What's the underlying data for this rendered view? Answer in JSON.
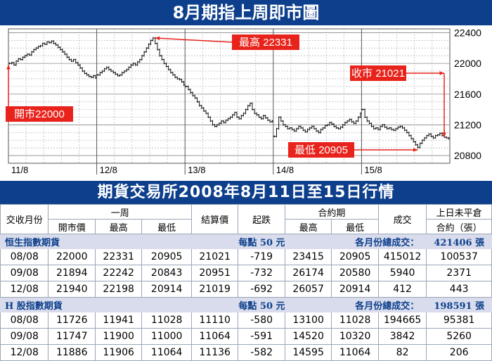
{
  "page_title": "8月期指上周即市圖",
  "table_title": "期貨交易所2008年8月11日至15日行情",
  "chart_data": {
    "type": "candlestick",
    "y_ticks": [
      20800,
      21200,
      21600,
      22000,
      22400
    ],
    "ylim": [
      20700,
      22450
    ],
    "x_labels": [
      "11/8",
      "12/8",
      "13/8",
      "14/8",
      "15/8"
    ],
    "grid": true,
    "annotations": {
      "open": {
        "label": "開市22000",
        "value": 22000
      },
      "high": {
        "label": "最高 22331",
        "value": 22331
      },
      "close": {
        "label": "收市 21021",
        "value": 21021
      },
      "low": {
        "label": "最低 20905",
        "value": 20905
      }
    },
    "series": [
      {
        "day": "11/8",
        "values": [
          22000,
          22010,
          21980,
          22030,
          22060,
          22050,
          22080,
          22100,
          22120,
          22110,
          22150,
          22180,
          22200,
          22220,
          22230,
          22260,
          22250,
          22280,
          22270,
          22290,
          22260,
          22240,
          22210,
          22180,
          22150,
          22120,
          22080,
          22050,
          22030,
          22050,
          22010,
          21980,
          21940,
          21900,
          21870,
          21850,
          21830,
          21820,
          21840,
          21810
        ]
      },
      {
        "day": "12/8",
        "values": [
          21850,
          21880,
          21900,
          21930,
          21950,
          21920,
          21900,
          21880,
          21860,
          21840,
          21850,
          21880,
          21900,
          21920,
          21950,
          21980,
          22000,
          21980,
          22020,
          22050,
          22100,
          22150,
          22200,
          22250,
          22300,
          22331,
          22260,
          22180,
          22100,
          22050,
          22000,
          21960,
          21920,
          21880,
          21850,
          21820,
          21800,
          21790,
          21760,
          21720
        ]
      },
      {
        "day": "13/8",
        "values": [
          21700,
          21660,
          21620,
          21580,
          21550,
          21500,
          21450,
          21420,
          21380,
          21350,
          21300,
          21250,
          21200,
          21180,
          21200,
          21220,
          21250,
          21230,
          21260,
          21280,
          21300,
          21330,
          21360,
          21300,
          21280,
          21320,
          21350,
          21400,
          21450,
          21480,
          21400,
          21350,
          21330,
          21300,
          21280,
          21320,
          21290,
          21260,
          21240,
          21250
        ]
      },
      {
        "day": "14/8",
        "values": [
          21050,
          21150,
          21300,
          21250,
          21200,
          21180,
          21150,
          21160,
          21140,
          21120,
          21150,
          21180,
          21160,
          21130,
          21110,
          21140,
          21160,
          21180,
          21150,
          21120,
          21100,
          21140,
          21160,
          21190,
          21200,
          21230,
          21210,
          21180,
          21160,
          21150,
          21170,
          21200,
          21230,
          21250,
          21270,
          21240,
          21220,
          21250,
          21300,
          21350
        ]
      },
      {
        "day": "15/8",
        "values": [
          21400,
          21300,
          21250,
          21220,
          21180,
          21150,
          21160,
          21140,
          21180,
          21200,
          21170,
          21150,
          21160,
          21140,
          21130,
          21150,
          21170,
          21180,
          21160,
          21130,
          21100,
          21060,
          21020,
          20980,
          20940,
          20905,
          20960,
          21000,
          21030,
          21060,
          21080,
          21050,
          21030,
          21060,
          21070,
          21090,
          21060,
          21040,
          21030,
          21021
        ]
      }
    ]
  },
  "table": {
    "headers": {
      "contract_month": "交收月份",
      "week": "一周",
      "open": "開市價",
      "high": "最高",
      "low": "最低",
      "settle": "結算價",
      "change": "起跌",
      "contract_period": "合約期",
      "cp_high": "最高",
      "cp_low": "最低",
      "volume": "成交",
      "open_interest_1": "上日未平倉",
      "open_interest_2": "合約（張）"
    },
    "sections": [
      {
        "name": "恒生指數期貨",
        "per_point": "每點 50 元",
        "volume_label": "各月份總成交：",
        "total": "421406 張",
        "rows": [
          [
            "08/08",
            "22000",
            "22331",
            "20905",
            "21021",
            "-719",
            "23415",
            "20905",
            "415012",
            "100537"
          ],
          [
            "09/08",
            "21894",
            "22242",
            "20843",
            "20951",
            "-732",
            "26174",
            "20580",
            "5940",
            "2371"
          ],
          [
            "12/08",
            "21940",
            "22198",
            "20914",
            "21019",
            "-692",
            "26057",
            "20914",
            "412",
            "443"
          ]
        ]
      },
      {
        "name": "H 股指數期貨",
        "per_point": "每點 50 元",
        "volume_label": "各月份總成交：",
        "total": "198591 張",
        "rows": [
          [
            "08/08",
            "11726",
            "11941",
            "11028",
            "11110",
            "-580",
            "13100",
            "11028",
            "194665",
            "95381"
          ],
          [
            "09/08",
            "11747",
            "11900",
            "11000",
            "11064",
            "-591",
            "14520",
            "10320",
            "3842",
            "5260"
          ],
          [
            "12/08",
            "11886",
            "11906",
            "11064",
            "11136",
            "-582",
            "14595",
            "11064",
            "82",
            "206"
          ]
        ]
      }
    ]
  }
}
